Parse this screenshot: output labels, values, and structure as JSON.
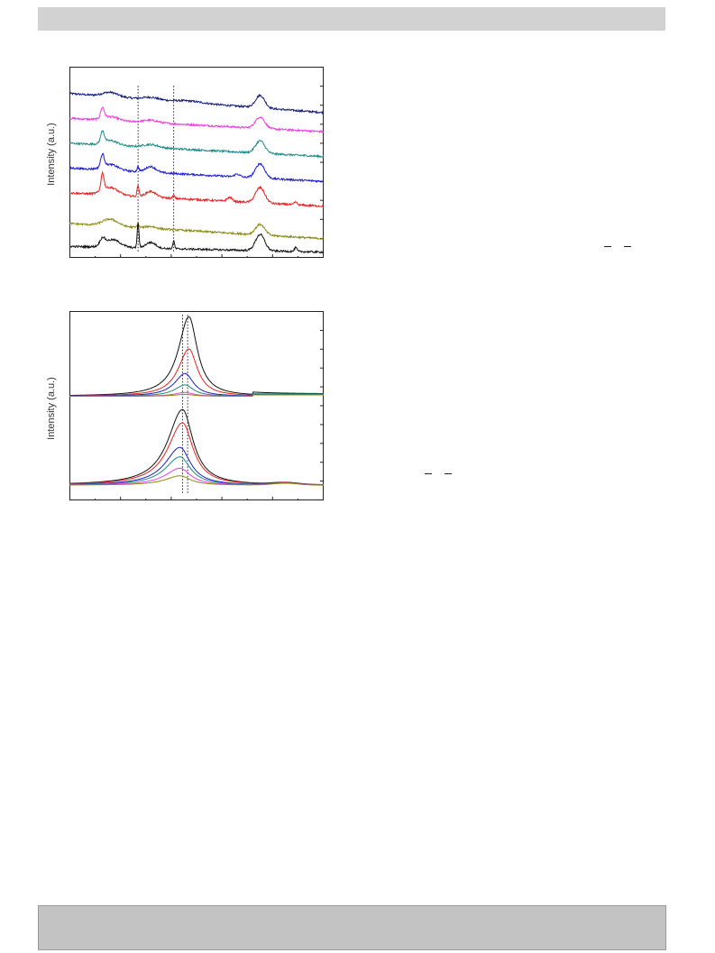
{
  "page": {
    "header_text": "",
    "footer_text": ""
  },
  "chart_data": [
    {
      "type": "line",
      "title": "",
      "xlabel": "",
      "ylabel": "Intensity (a.u.)",
      "grid": false,
      "legend": "none",
      "xlim": [
        0,
        100
      ],
      "ylim": [
        0,
        100
      ],
      "reference_lines_x": [
        27,
        41
      ],
      "series": [
        {
          "color": "#0f1a7a",
          "offset": 86,
          "slope": -0.1,
          "peaks": [
            [
              16,
              2.2,
              3.0
            ],
            [
              32,
              1.2,
              3.0
            ],
            [
              47,
              0.8,
              5.0
            ],
            [
              75,
              6.5,
              1.8
            ]
          ]
        },
        {
          "color": "#e83ee0",
          "offset": 73,
          "slope": -0.07,
          "peaks": [
            [
              13,
              5.5,
              0.7
            ],
            [
              16,
              2.0,
              3.0
            ],
            [
              32,
              1.2,
              3.0
            ],
            [
              75,
              6.0,
              1.8
            ]
          ]
        },
        {
          "color": "#1a8a86",
          "offset": 60,
          "slope": -0.07,
          "peaks": [
            [
              13,
              6.0,
              0.7
            ],
            [
              16,
              2.5,
              3.0
            ],
            [
              32,
              1.5,
              3.0
            ],
            [
              75,
              6.5,
              1.8
            ]
          ]
        },
        {
          "color": "#1c1ccc",
          "offset": 47,
          "slope": -0.07,
          "peaks": [
            [
              13,
              6.5,
              0.7
            ],
            [
              16,
              3.0,
              3.0
            ],
            [
              27,
              2.5,
              0.4
            ],
            [
              32,
              3.0,
              2.0
            ],
            [
              66,
              1.5,
              1.0
            ],
            [
              75,
              7.5,
              1.8
            ]
          ]
        },
        {
          "color": "#e82020",
          "offset": 34,
          "slope": -0.07,
          "peaks": [
            [
              13,
              9.0,
              0.6
            ],
            [
              16,
              4.0,
              3.0
            ],
            [
              27,
              6.0,
              0.35
            ],
            [
              32,
              3.0,
              2.0
            ],
            [
              41,
              1.5,
              0.4
            ],
            [
              63,
              2.0,
              1.0
            ],
            [
              75,
              8.0,
              1.8
            ],
            [
              89,
              1.5,
              0.5
            ]
          ]
        },
        {
          "color": "#8a8a12",
          "offset": 18,
          "slope": -0.08,
          "peaks": [
            [
              16,
              3.5,
              3.0
            ],
            [
              27,
              2.0,
              0.4
            ],
            [
              32,
              1.0,
              2.0
            ],
            [
              75,
              5.5,
              1.8
            ]
          ]
        },
        {
          "color": "#111111",
          "offset": 6,
          "slope": -0.03,
          "peaks": [
            [
              13,
              3.5,
              1.0
            ],
            [
              17,
              4.0,
              3.0
            ],
            [
              27,
              13.0,
              0.35
            ],
            [
              32,
              3.0,
              2.0
            ],
            [
              41,
              4.0,
              0.35
            ],
            [
              75,
              8.5,
              1.8
            ],
            [
              89,
              2.0,
              0.5
            ]
          ]
        }
      ]
    },
    {
      "type": "line",
      "title": "",
      "xlabel": "",
      "ylabel": "Intensity (a.u.)",
      "grid": false,
      "legend": "none",
      "xlim": [
        0,
        100
      ],
      "ylim": [
        0,
        100
      ],
      "reference_lines_x": [
        44.5,
        46.5
      ],
      "series": [
        {
          "color": "#111111",
          "group": "upper",
          "center": 47,
          "height": 42
        },
        {
          "color": "#e82020",
          "group": "upper",
          "center": 47,
          "height": 25
        },
        {
          "color": "#1c1ccc",
          "group": "upper",
          "center": 45.5,
          "height": 12
        },
        {
          "color": "#1a8a86",
          "group": "upper",
          "center": 45.5,
          "height": 6
        },
        {
          "color": "#e83ee0",
          "group": "upper",
          "center": 45.5,
          "height": 2
        },
        {
          "color": "#8a8a12",
          "group": "upper",
          "center": 45.5,
          "height": 1
        },
        {
          "color": "#111111",
          "group": "lower",
          "center": 44.5,
          "height": 40
        },
        {
          "color": "#e82020",
          "group": "lower",
          "center": 44.5,
          "height": 33
        },
        {
          "color": "#1c1ccc",
          "group": "lower",
          "center": 43.5,
          "height": 20
        },
        {
          "color": "#1a8a86",
          "group": "lower",
          "center": 43.5,
          "height": 15
        },
        {
          "color": "#e83ee0",
          "group": "lower",
          "center": 43.5,
          "height": 9
        },
        {
          "color": "#8a8a12",
          "group": "lower",
          "center": 43.5,
          "height": 5
        }
      ]
    }
  ]
}
